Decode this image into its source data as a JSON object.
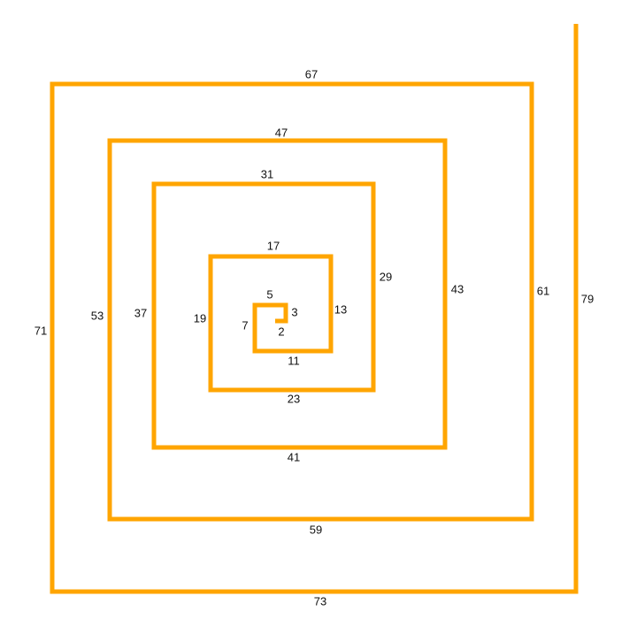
{
  "diagram": {
    "line_color": "#FFA500",
    "segment_labels": [
      "2",
      "3",
      "5",
      "7",
      "11",
      "13",
      "17",
      "19",
      "23",
      "29",
      "31",
      "37",
      "41",
      "43",
      "47",
      "53",
      "59",
      "61",
      "67",
      "71",
      "73",
      "79"
    ]
  }
}
